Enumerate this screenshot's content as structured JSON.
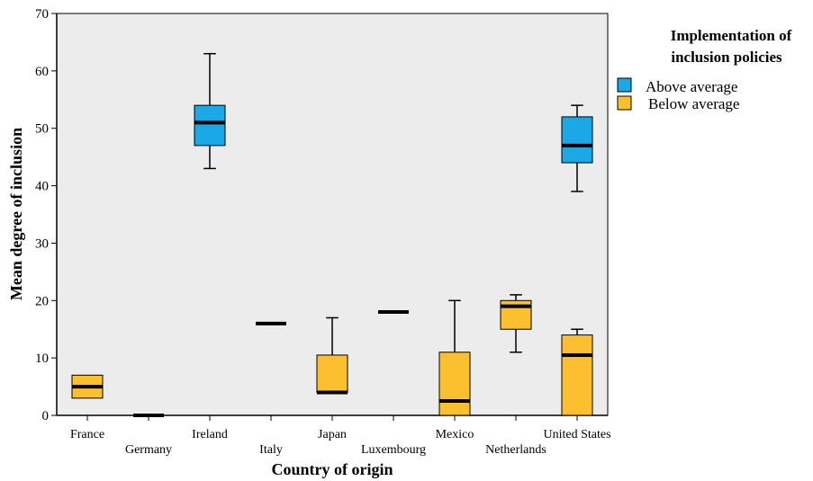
{
  "chart_data": {
    "type": "boxplot",
    "xlabel": "Country of origin",
    "ylabel": "Mean degree of inclusion",
    "ylim": [
      0,
      70
    ],
    "yticks": [
      0,
      10,
      20,
      30,
      40,
      50,
      60,
      70
    ],
    "categories": [
      "France",
      "Germany",
      "Ireland",
      "Italy",
      "Japan",
      "Luxembourg",
      "Mexico",
      "Netherlands",
      "United States"
    ],
    "legend": {
      "title_line1": "Implementation of",
      "title_line2": "inclusion policies",
      "placement": "right"
    },
    "series": [
      {
        "name": "Above average",
        "color": "#1aa9e6",
        "boxes": [
          {
            "category": "Ireland",
            "min": 43,
            "q1": 47,
            "median": 51,
            "q3": 54,
            "max": 63
          },
          {
            "category": "United States",
            "min": 39,
            "q1": 44,
            "median": 47,
            "q3": 52,
            "max": 54
          }
        ]
      },
      {
        "name": "Below average",
        "color": "#fbbf2f",
        "boxes": [
          {
            "category": "France",
            "min": 3,
            "q1": 3,
            "median": 5,
            "q3": 7,
            "max": 7
          },
          {
            "category": "Germany",
            "min": 0,
            "q1": 0,
            "median": 0,
            "q3": 0,
            "max": 0
          },
          {
            "category": "Italy",
            "min": 16,
            "q1": 16,
            "median": 16,
            "q3": 16,
            "max": 16
          },
          {
            "category": "Japan",
            "min": 4,
            "q1": 4,
            "median": 4,
            "q3": 10.5,
            "max": 17
          },
          {
            "category": "Luxembourg",
            "min": 18,
            "q1": 18,
            "median": 18,
            "q3": 18,
            "max": 18
          },
          {
            "category": "Mexico",
            "min": 0,
            "q1": 0,
            "median": 2.5,
            "q3": 11,
            "max": 20
          },
          {
            "category": "Netherlands",
            "min": 11,
            "q1": 15,
            "median": 19,
            "q3": 20,
            "max": 21
          },
          {
            "category": "United States",
            "min": 0,
            "q1": 0,
            "median": 10.5,
            "q3": 14,
            "max": 15
          }
        ]
      }
    ]
  }
}
